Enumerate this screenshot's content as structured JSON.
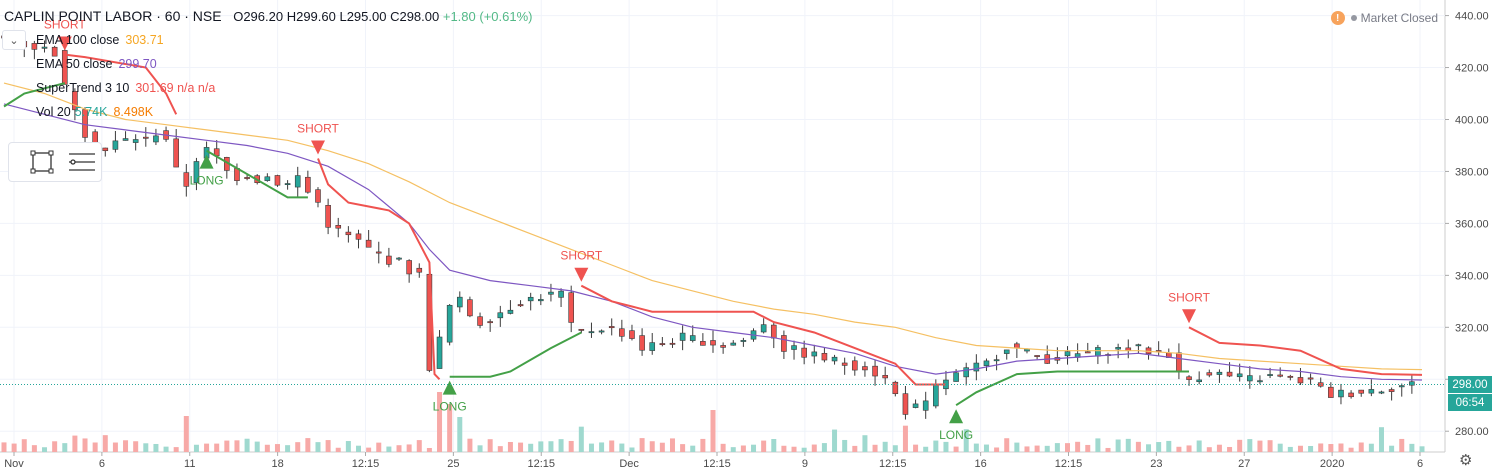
{
  "header": {
    "symbol": "CAPLIN POINT LABOR · 60 · NSE",
    "ohlc": "O296.20  H299.60  L295.00  C298.00",
    "change": "+1.80 (+0.61%)"
  },
  "legend": [
    {
      "label": "EMA 100 close",
      "value": "303.71",
      "color": "#f5a623"
    },
    {
      "label": "EMA 50 close",
      "value": "299.70",
      "color": "#7e57c2"
    },
    {
      "label": "SuperTrend 3 10",
      "value": "301.69 n/a n/a",
      "color": "#ef5350"
    },
    {
      "label": "Vol 20",
      "value": "5.74K",
      "value2": "8.498K",
      "color": "#26a69a",
      "color2": "#f57c00"
    }
  ],
  "market_status": "Market Closed",
  "price_tag": "298.00",
  "time_tag": "06:54",
  "colors": {
    "up": "#26a69a",
    "down": "#ef5350",
    "ema100": "#f5c063",
    "ema50": "#7e57c2",
    "st_up": "#43a047",
    "st_down": "#ef5350"
  },
  "chart_data": {
    "type": "candlestick",
    "y_ticks": [
      "440.00",
      "420.00",
      "400.00",
      "380.00",
      "360.00",
      "340.00",
      "320.00",
      "300.00",
      "280.00"
    ],
    "ylim": [
      272,
      446
    ],
    "x_ticks": [
      "Nov",
      "6",
      "11",
      "18",
      "12:15",
      "25",
      "12:15",
      "Dec",
      "12:15",
      "9",
      "12:15",
      "16",
      "12:15",
      "23",
      "27",
      "2020",
      "6"
    ],
    "last_price": 298.0,
    "close_path": [
      [
        0,
        432
      ],
      [
        2,
        430
      ],
      [
        4,
        428
      ],
      [
        6,
        426
      ],
      [
        7,
        412
      ],
      [
        8,
        405
      ],
      [
        9,
        395
      ],
      [
        10,
        390
      ],
      [
        11,
        388
      ],
      [
        12,
        391
      ],
      [
        13,
        392
      ],
      [
        14,
        393
      ],
      [
        15,
        392
      ],
      [
        16,
        395
      ],
      [
        17,
        393
      ],
      [
        18,
        380
      ],
      [
        19,
        375
      ],
      [
        20,
        385
      ],
      [
        21,
        388
      ],
      [
        22,
        385
      ],
      [
        23,
        380
      ],
      [
        24,
        378
      ],
      [
        25,
        379
      ],
      [
        26,
        377
      ],
      [
        27,
        378
      ],
      [
        28,
        376
      ],
      [
        29,
        375
      ],
      [
        30,
        378
      ],
      [
        31,
        372
      ],
      [
        32,
        368
      ],
      [
        33,
        360
      ],
      [
        34,
        357
      ],
      [
        35,
        355
      ],
      [
        36,
        353
      ],
      [
        37,
        350
      ],
      [
        38,
        348
      ],
      [
        39,
        346
      ],
      [
        40,
        345
      ],
      [
        41,
        342
      ],
      [
        42,
        340
      ],
      [
        42.5,
        320
      ],
      [
        43,
        305
      ],
      [
        44,
        315
      ],
      [
        45,
        328
      ],
      [
        46,
        330
      ],
      [
        47,
        325
      ],
      [
        48,
        322
      ],
      [
        50,
        326
      ],
      [
        52,
        330
      ],
      [
        54,
        332
      ],
      [
        56,
        333
      ],
      [
        57,
        320
      ],
      [
        58,
        318
      ],
      [
        60,
        320
      ],
      [
        62,
        318
      ],
      [
        63,
        316
      ],
      [
        64,
        312
      ],
      [
        66,
        314
      ],
      [
        68,
        316
      ],
      [
        70,
        315
      ],
      [
        72,
        313
      ],
      [
        74,
        315
      ],
      [
        76,
        322
      ],
      [
        78,
        312
      ],
      [
        80,
        310
      ],
      [
        82,
        308
      ],
      [
        84,
        306
      ],
      [
        86,
        305
      ],
      [
        88,
        300
      ],
      [
        90,
        288
      ],
      [
        92,
        290
      ],
      [
        93,
        297
      ],
      [
        94,
        300
      ],
      [
        96,
        303
      ],
      [
        98,
        306
      ],
      [
        100,
        313
      ],
      [
        102,
        310
      ],
      [
        104,
        308
      ],
      [
        106,
        309
      ],
      [
        108,
        310
      ],
      [
        110,
        311
      ],
      [
        112,
        312
      ],
      [
        114,
        311
      ],
      [
        116,
        310
      ],
      [
        117,
        302
      ],
      [
        118,
        300
      ],
      [
        120,
        303
      ],
      [
        122,
        301
      ],
      [
        124,
        300
      ],
      [
        126,
        301
      ],
      [
        128,
        300
      ],
      [
        130,
        299
      ],
      [
        131,
        296
      ],
      [
        132,
        294
      ],
      [
        134,
        295
      ],
      [
        136,
        296
      ],
      [
        138,
        297
      ],
      [
        140,
        298
      ]
    ],
    "ema100": [
      [
        0,
        414
      ],
      [
        4,
        410
      ],
      [
        8,
        404
      ],
      [
        12,
        400
      ],
      [
        16,
        398
      ],
      [
        20,
        396
      ],
      [
        24,
        394
      ],
      [
        28,
        392
      ],
      [
        32,
        388
      ],
      [
        36,
        383
      ],
      [
        40,
        376
      ],
      [
        44,
        368
      ],
      [
        48,
        362
      ],
      [
        52,
        356
      ],
      [
        56,
        350
      ],
      [
        60,
        344
      ],
      [
        64,
        338
      ],
      [
        68,
        334
      ],
      [
        72,
        330
      ],
      [
        76,
        327
      ],
      [
        80,
        325
      ],
      [
        84,
        322
      ],
      [
        88,
        320
      ],
      [
        92,
        316
      ],
      [
        96,
        313
      ],
      [
        100,
        312
      ],
      [
        104,
        311
      ],
      [
        108,
        311
      ],
      [
        112,
        311
      ],
      [
        116,
        310
      ],
      [
        120,
        308
      ],
      [
        124,
        307
      ],
      [
        128,
        306
      ],
      [
        132,
        305
      ],
      [
        136,
        304
      ],
      [
        140,
        303.71
      ]
    ],
    "ema50": [
      [
        0,
        406
      ],
      [
        4,
        402
      ],
      [
        8,
        398
      ],
      [
        12,
        396
      ],
      [
        16,
        394
      ],
      [
        20,
        392
      ],
      [
        24,
        390
      ],
      [
        28,
        387
      ],
      [
        32,
        382
      ],
      [
        36,
        373
      ],
      [
        40,
        360
      ],
      [
        42,
        350
      ],
      [
        44,
        342
      ],
      [
        48,
        338
      ],
      [
        52,
        336
      ],
      [
        56,
        334
      ],
      [
        60,
        330
      ],
      [
        64,
        324
      ],
      [
        68,
        320
      ],
      [
        72,
        318
      ],
      [
        76,
        316
      ],
      [
        80,
        313
      ],
      [
        84,
        310
      ],
      [
        88,
        305
      ],
      [
        92,
        302
      ],
      [
        96,
        304
      ],
      [
        100,
        307
      ],
      [
        104,
        308
      ],
      [
        108,
        309
      ],
      [
        112,
        310
      ],
      [
        116,
        308
      ],
      [
        120,
        306
      ],
      [
        124,
        304
      ],
      [
        128,
        303
      ],
      [
        132,
        301
      ],
      [
        136,
        300
      ],
      [
        140,
        299.7
      ]
    ],
    "supertrend": [
      [
        0,
        405,
        "up"
      ],
      [
        2,
        410,
        "up"
      ],
      [
        4,
        412,
        "up"
      ],
      [
        6,
        414,
        "up"
      ],
      [
        6,
        425,
        "down"
      ],
      [
        8,
        424,
        "down"
      ],
      [
        14,
        420,
        "down"
      ],
      [
        16,
        410,
        "down"
      ],
      [
        17,
        402,
        "down"
      ],
      [
        20,
        388,
        "up"
      ],
      [
        28,
        370,
        "up"
      ],
      [
        30,
        370,
        "up"
      ],
      [
        31,
        385,
        "down"
      ],
      [
        32,
        375,
        "down"
      ],
      [
        34,
        368,
        "down"
      ],
      [
        38,
        365,
        "down"
      ],
      [
        40,
        360,
        "down"
      ],
      [
        42,
        345,
        "down"
      ],
      [
        42.5,
        302,
        "down"
      ],
      [
        43,
        300,
        "down"
      ],
      [
        44,
        301,
        "up"
      ],
      [
        48,
        301,
        "up"
      ],
      [
        50,
        303,
        "up"
      ],
      [
        54,
        312,
        "up"
      ],
      [
        57,
        318,
        "up"
      ],
      [
        57,
        336,
        "down"
      ],
      [
        60,
        330,
        "down"
      ],
      [
        62,
        328,
        "down"
      ],
      [
        64,
        326,
        "down"
      ],
      [
        70,
        326,
        "down"
      ],
      [
        74,
        326,
        "down"
      ],
      [
        76,
        322,
        "down"
      ],
      [
        80,
        318,
        "down"
      ],
      [
        84,
        312,
        "down"
      ],
      [
        88,
        306,
        "down"
      ],
      [
        90,
        298,
        "down"
      ],
      [
        93,
        298,
        "down"
      ],
      [
        94,
        290,
        "up"
      ],
      [
        96,
        295,
        "up"
      ],
      [
        100,
        302,
        "up"
      ],
      [
        104,
        303,
        "up"
      ],
      [
        112,
        303,
        "up"
      ],
      [
        117,
        303,
        "up"
      ],
      [
        117,
        320,
        "down"
      ],
      [
        120,
        314,
        "down"
      ],
      [
        124,
        313,
        "down"
      ],
      [
        128,
        311,
        "down"
      ],
      [
        132,
        304,
        "down"
      ],
      [
        136,
        302,
        "down"
      ],
      [
        140,
        301.69,
        "down"
      ]
    ],
    "signals": [
      {
        "label": "SHORT",
        "i": 6,
        "dir": "short"
      },
      {
        "label": "LONG",
        "i": 20,
        "dir": "long"
      },
      {
        "label": "SHORT",
        "i": 31,
        "dir": "short"
      },
      {
        "label": "LONG",
        "i": 44,
        "dir": "long"
      },
      {
        "label": "SHORT",
        "i": 57,
        "dir": "short"
      },
      {
        "label": "LONG",
        "i": 94,
        "dir": "long"
      },
      {
        "label": "SHORT",
        "i": 117,
        "dir": "short"
      }
    ]
  }
}
